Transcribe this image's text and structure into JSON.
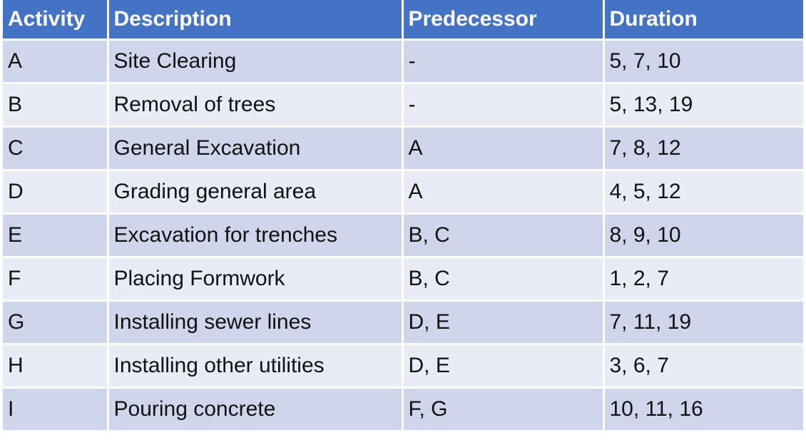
{
  "table": {
    "headers": [
      "Activity",
      "Description",
      "Predecessor",
      "Duration"
    ],
    "rows": [
      {
        "activity": "A",
        "description": "Site Clearing",
        "predecessor": "-",
        "duration": "5, 7, 10"
      },
      {
        "activity": "B",
        "description": "Removal of trees",
        "predecessor": "-",
        "duration": "5, 13, 19"
      },
      {
        "activity": "C",
        "description": "General Excavation",
        "predecessor": "A",
        "duration": "7, 8, 12"
      },
      {
        "activity": "D",
        "description": "Grading general area",
        "predecessor": "A",
        "duration": "4, 5, 12"
      },
      {
        "activity": "E",
        "description": "Excavation for trenches",
        "predecessor": "B, C",
        "duration": "8, 9, 10"
      },
      {
        "activity": "F",
        "description": "Placing Formwork",
        "predecessor": "B, C",
        "duration": "1, 2, 7"
      },
      {
        "activity": "G",
        "description": "Installing sewer lines",
        "predecessor": "D, E",
        "duration": "7, 11, 19"
      },
      {
        "activity": "H",
        "description": "Installing other utilities",
        "predecessor": "D, E",
        "duration": "3, 6, 7"
      },
      {
        "activity": "I",
        "description": "Pouring concrete",
        "predecessor": "F, G",
        "duration": "10, 11, 16"
      }
    ]
  },
  "colors": {
    "header_bg": "#4472c4",
    "row_dark": "#cfd5ea",
    "row_light": "#e9ebf5",
    "header_text": "#ffffff",
    "body_text": "#111111"
  }
}
